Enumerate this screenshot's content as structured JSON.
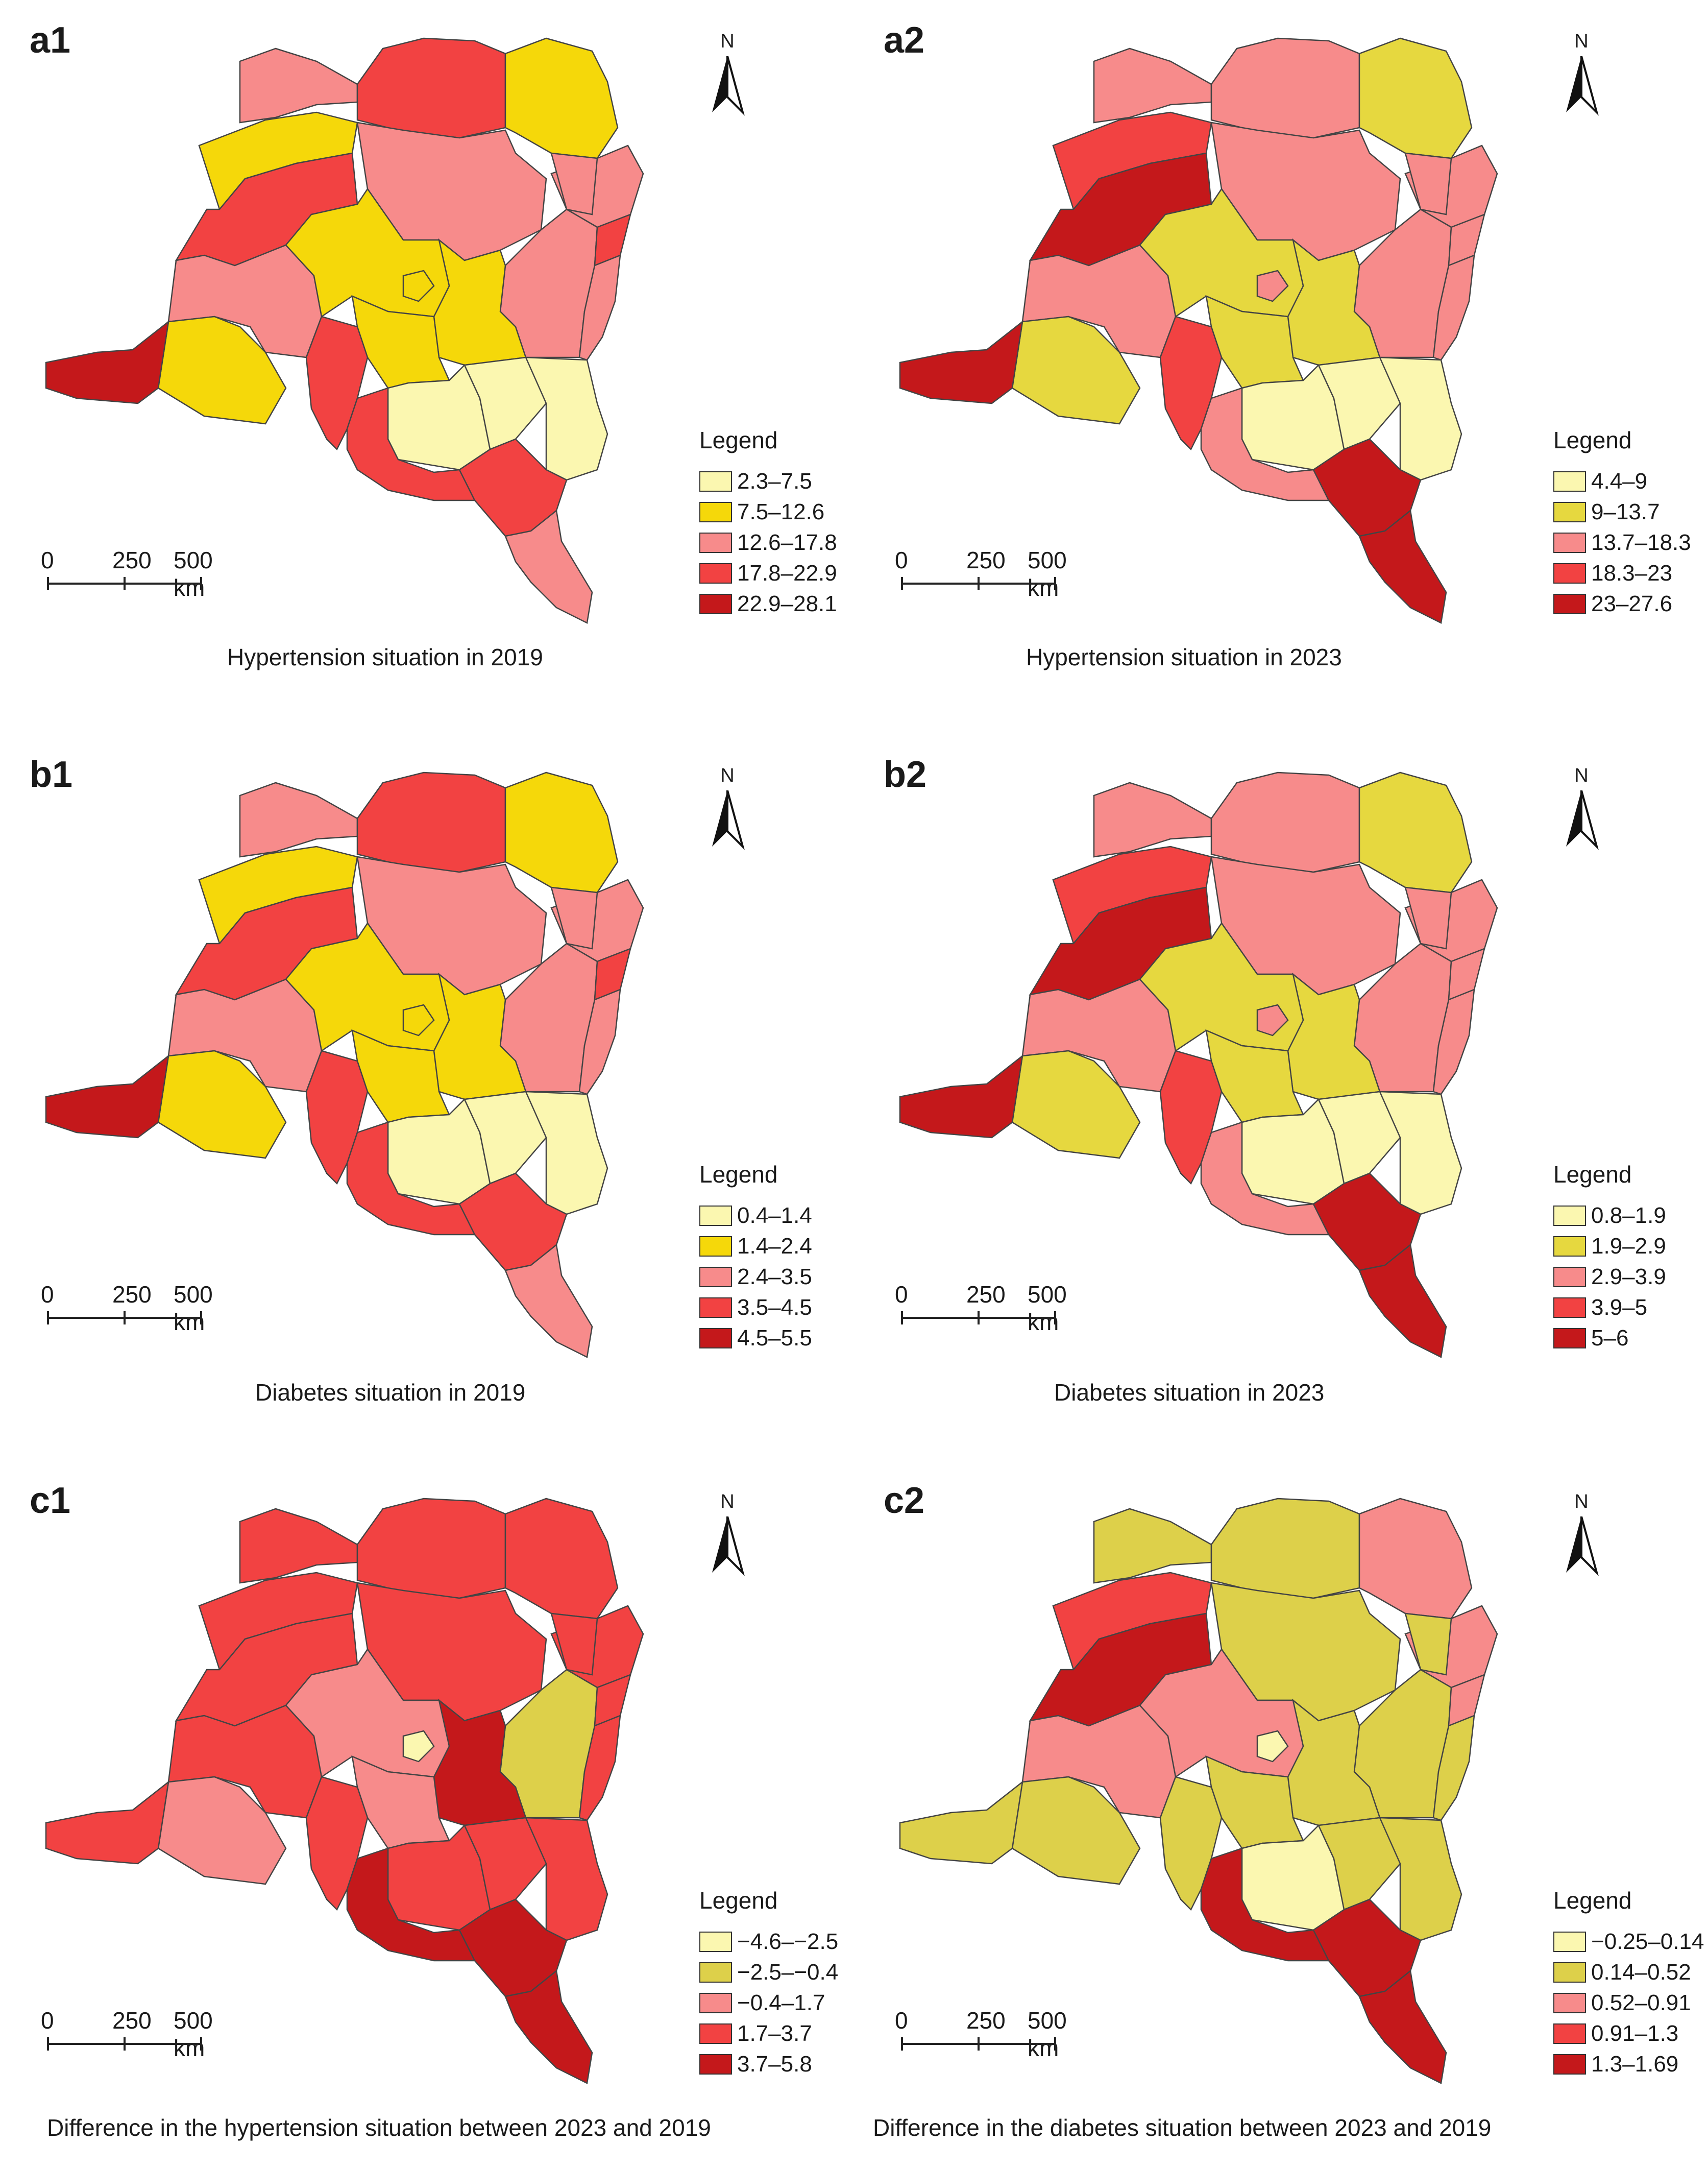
{
  "north_label": "N",
  "legend_title": "Legend",
  "scale": {
    "ticks": [
      "0",
      "250",
      "500 km"
    ]
  },
  "panels": [
    {
      "id": "a1",
      "label": "a1",
      "caption": "Hypertension situation in 2019",
      "legend": [
        {
          "label": "2.3–7.5",
          "color": "#fbf7b0"
        },
        {
          "label": "7.5–12.6",
          "color": "#f5d80a"
        },
        {
          "label": "12.6–17.8",
          "color": "#f78b8b"
        },
        {
          "label": "17.8–22.9",
          "color": "#f24242"
        },
        {
          "label": "22.9–28.1",
          "color": "#c4181b"
        }
      ],
      "regions": [
        2,
        3,
        1,
        2,
        2,
        1,
        2,
        2,
        3,
        1,
        2,
        3,
        2,
        1,
        1,
        4,
        1,
        3,
        0,
        0,
        0,
        3,
        3,
        2,
        1
      ]
    },
    {
      "id": "a2",
      "label": "a2",
      "caption": "Hypertension situation in 2023",
      "legend": [
        {
          "label": "4.4–9",
          "color": "#fbf7b0"
        },
        {
          "label": "9–13.7",
          "color": "#e6d83f"
        },
        {
          "label": "13.7–18.3",
          "color": "#f78b8b"
        },
        {
          "label": "18.3–23",
          "color": "#f24242"
        },
        {
          "label": "23–27.6",
          "color": "#c4181b"
        }
      ],
      "regions": [
        2,
        2,
        1,
        2,
        2,
        3,
        2,
        2,
        2,
        1,
        2,
        4,
        2,
        1,
        1,
        4,
        1,
        3,
        0,
        0,
        0,
        2,
        4,
        4,
        2
      ]
    },
    {
      "id": "b1",
      "label": "b1",
      "caption": "Diabetes situation in 2019",
      "legend": [
        {
          "label": "0.4–1.4",
          "color": "#fbf7b0"
        },
        {
          "label": "1.4–2.4",
          "color": "#f5d80a"
        },
        {
          "label": "2.4–3.5",
          "color": "#f78b8b"
        },
        {
          "label": "3.5–4.5",
          "color": "#f24242"
        },
        {
          "label": "4.5–5.5",
          "color": "#c4181b"
        }
      ],
      "regions": [
        2,
        3,
        1,
        2,
        2,
        1,
        2,
        2,
        3,
        1,
        2,
        3,
        2,
        1,
        1,
        4,
        1,
        3,
        0,
        0,
        0,
        3,
        3,
        2,
        1
      ]
    },
    {
      "id": "b2",
      "label": "b2",
      "caption": "Diabetes situation in 2023",
      "legend": [
        {
          "label": "0.8–1.9",
          "color": "#fbf7b0"
        },
        {
          "label": "1.9–2.9",
          "color": "#e6d83f"
        },
        {
          "label": "2.9–3.9",
          "color": "#f78b8b"
        },
        {
          "label": "3.9–5",
          "color": "#f24242"
        },
        {
          "label": "5–6",
          "color": "#c4181b"
        }
      ],
      "regions": [
        2,
        2,
        1,
        2,
        2,
        3,
        2,
        2,
        2,
        1,
        2,
        4,
        2,
        1,
        1,
        4,
        1,
        3,
        0,
        0,
        0,
        2,
        4,
        4,
        2
      ]
    },
    {
      "id": "c1",
      "label": "c1",
      "caption": "Difference in the hypertension situation between 2023 and 2019",
      "legend": [
        {
          "label": "−4.6–−2.5",
          "color": "#fbf7b0"
        },
        {
          "label": "−2.5–−0.4",
          "color": "#ddd04a"
        },
        {
          "label": "−0.4–1.7",
          "color": "#f78b8b"
        },
        {
          "label": "1.7–3.7",
          "color": "#f24242"
        },
        {
          "label": "3.7–5.8",
          "color": "#c4181b"
        }
      ],
      "regions": [
        3,
        3,
        3,
        3,
        3,
        3,
        3,
        1,
        3,
        4,
        3,
        3,
        3,
        2,
        2,
        3,
        2,
        3,
        3,
        3,
        3,
        4,
        4,
        4,
        0
      ]
    },
    {
      "id": "c2",
      "label": "c2",
      "caption": "Difference in the diabetes situation between 2023 and 2019",
      "legend": [
        {
          "label": "−0.25–0.14",
          "color": "#fbf7b0"
        },
        {
          "label": "0.14–0.52",
          "color": "#ddd04a"
        },
        {
          "label": "0.52–0.91",
          "color": "#f78b8b"
        },
        {
          "label": "0.91–1.3",
          "color": "#f24242"
        },
        {
          "label": "1.3–1.69",
          "color": "#c4181b"
        }
      ],
      "regions": [
        1,
        1,
        2,
        2,
        1,
        3,
        1,
        1,
        2,
        1,
        1,
        4,
        2,
        2,
        1,
        1,
        1,
        1,
        0,
        1,
        1,
        4,
        4,
        4,
        0
      ]
    }
  ]
}
